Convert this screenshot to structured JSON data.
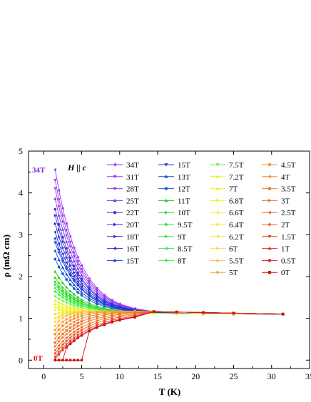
{
  "chart_data": {
    "type": "line",
    "title": "",
    "xlabel": "T (K)",
    "ylabel": "ρ (mΩ cm)",
    "xlim": [
      -2,
      35
    ],
    "ylim": [
      -0.2,
      5
    ],
    "xticks": [
      0,
      5,
      10,
      15,
      20,
      25,
      30,
      35
    ],
    "yticks": [
      0,
      1,
      2,
      3,
      4,
      5
    ],
    "grid": false,
    "legend_position": "top-right",
    "annotations": {
      "field_direction": "H || c",
      "top_label": "34T",
      "bottom_label": "0T"
    },
    "x_data_K": [
      1.5,
      2,
      2.5,
      3,
      3.5,
      4,
      4.5,
      5,
      6,
      7,
      8,
      9,
      10,
      12,
      14.5,
      17.5,
      21,
      25,
      31.5
    ],
    "series": [
      {
        "name": "34T",
        "color": "#9B30FF",
        "marker": "tri-left",
        "rho_low": 4.55
      },
      {
        "name": "31T",
        "color": "#9E3BF2",
        "marker": "tri-down",
        "rho_low": 4.3
      },
      {
        "name": "28T",
        "color": "#9540EA",
        "marker": "tri-down",
        "rho_low": 4.1
      },
      {
        "name": "25T",
        "color": "#7B35E8",
        "marker": "tri-up",
        "rho_low": 3.85
      },
      {
        "name": "22T",
        "color": "#4B2FE0",
        "marker": "circle",
        "rho_low": 3.6
      },
      {
        "name": "20T",
        "color": "#3A2BD8",
        "marker": "tri-right",
        "rho_low": 3.45
      },
      {
        "name": "18T",
        "color": "#2B2BD0",
        "marker": "tri-right",
        "rho_low": 3.25
      },
      {
        "name": "16T",
        "color": "#1E2ED5",
        "marker": "tri-left",
        "rho_low": 3.05
      },
      {
        "name": "15T",
        "color": "#1E3EE0",
        "marker": "tri-up",
        "rho_low": 2.9
      },
      {
        "name": "15T",
        "color": "#2040D8",
        "marker": "tri-down",
        "rho_low": 2.8
      },
      {
        "name": "13T",
        "color": "#1A4AD0",
        "marker": "tri-up",
        "rho_low": 2.6
      },
      {
        "name": "12T",
        "color": "#1560C8",
        "marker": "circle",
        "rho_low": 2.4
      },
      {
        "name": "11T",
        "color": "#22CC22",
        "marker": "tri-up",
        "rho_low": 2.1
      },
      {
        "name": "10T",
        "color": "#2ED42E",
        "marker": "tri-right",
        "rho_low": 1.95
      },
      {
        "name": "9.5T",
        "color": "#33DD33",
        "marker": "diamond",
        "rho_low": 1.85
      },
      {
        "name": "9T",
        "color": "#3CE03C",
        "marker": "tri-right",
        "rho_low": 1.78
      },
      {
        "name": "8.5T",
        "color": "#45E545",
        "marker": "tri-left",
        "rho_low": 1.7
      },
      {
        "name": "8T",
        "color": "#4CEB4C",
        "marker": "diamond",
        "rho_low": 1.62
      },
      {
        "name": "7.5T",
        "color": "#66F066",
        "marker": "tri-down",
        "rho_low": 1.5
      },
      {
        "name": "7.2T",
        "color": "#E8F020",
        "marker": "tri-up",
        "rho_low": 1.4
      },
      {
        "name": "7T",
        "color": "#EEF225",
        "marker": "tri-up",
        "rho_low": 1.32
      },
      {
        "name": "6.8T",
        "color": "#F2F22A",
        "marker": "tri-right",
        "rho_low": 1.25
      },
      {
        "name": "6.6T",
        "color": "#F4EE2E",
        "marker": "tri-left",
        "rho_low": 1.18
      },
      {
        "name": "6.4T",
        "color": "#F5EA30",
        "marker": "diamond",
        "rho_low": 1.1
      },
      {
        "name": "6.2T",
        "color": "#F7E535",
        "marker": "tri-left",
        "rho_low": 1.0
      },
      {
        "name": "6T",
        "color": "#F8E03A",
        "marker": "tri-right",
        "rho_low": 0.92
      },
      {
        "name": "5.5T",
        "color": "#F9C340",
        "marker": "tri-up",
        "rho_low": 0.82
      },
      {
        "name": "5T",
        "color": "#F7A440",
        "marker": "diamond",
        "rho_low": 0.72
      },
      {
        "name": "4.5T",
        "color": "#F59538",
        "marker": "circle",
        "rho_low": 0.62
      },
      {
        "name": "4T",
        "color": "#F28A32",
        "marker": "tri-left",
        "rho_low": 0.52
      },
      {
        "name": "3.5T",
        "color": "#F07E2E",
        "marker": "square",
        "rho_low": 0.42
      },
      {
        "name": "3T",
        "color": "#EE742A",
        "marker": "tri-right",
        "rho_low": 0.33
      },
      {
        "name": "2.5T",
        "color": "#EC6A26",
        "marker": "tri-left",
        "rho_low": 0.24
      },
      {
        "name": "2T",
        "color": "#E86222",
        "marker": "diamond",
        "rho_low": 0.16
      },
      {
        "name": "1.5T",
        "color": "#E83A30",
        "marker": "tri-down",
        "rho_low": 0.08
      },
      {
        "name": "1T",
        "color": "#E02828",
        "marker": "tri-up",
        "rho_low": 0.03
      },
      {
        "name": "0.5T",
        "color": "#D81E1E",
        "marker": "circle",
        "rho_low": 0.0
      },
      {
        "name": "0T",
        "color": "#D01010",
        "marker": "square",
        "rho_low": 0.0
      }
    ]
  }
}
